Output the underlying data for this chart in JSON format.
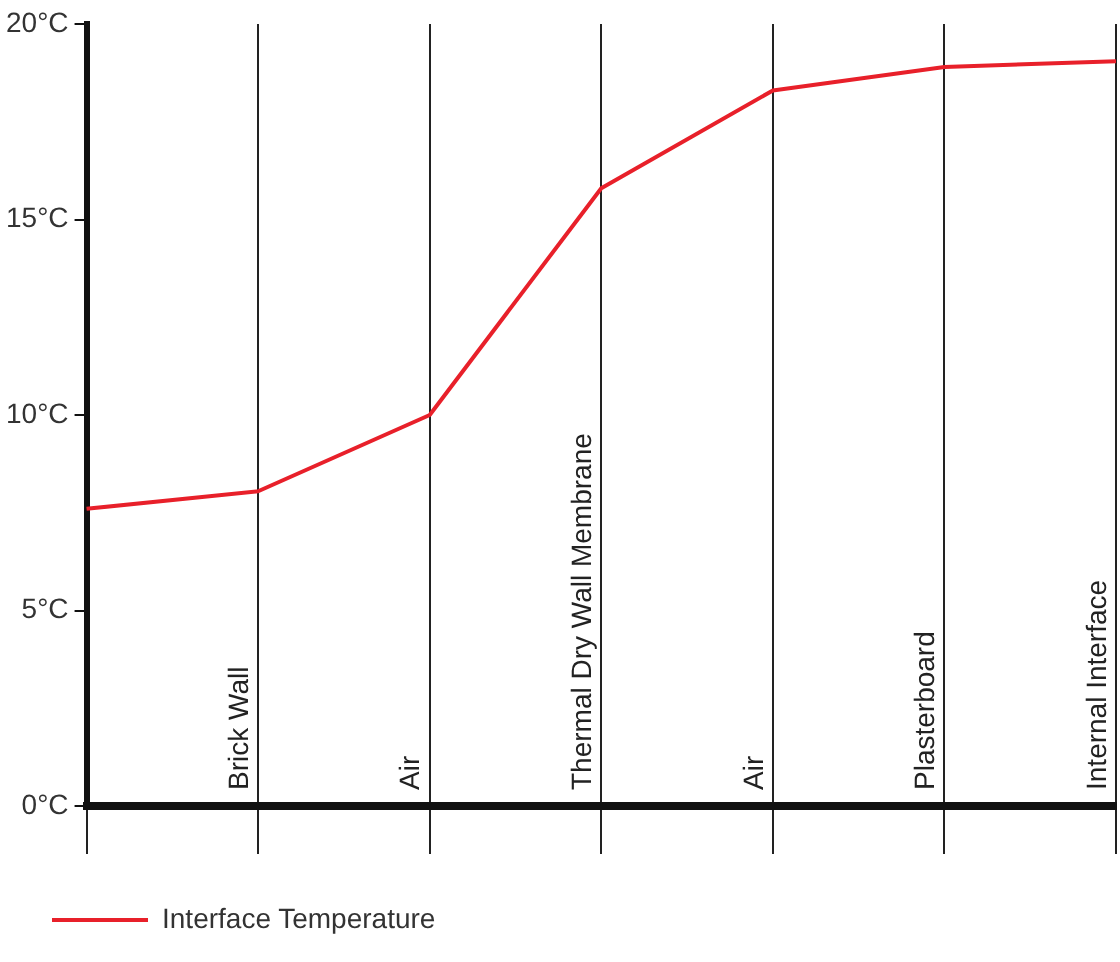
{
  "chart_data": {
    "type": "line",
    "categories": [
      null,
      "Brick Wall",
      "Air",
      "Thermal Dry Wall Membrane",
      "Air",
      "Plasterboard",
      "Internal Interface"
    ],
    "series": [
      {
        "name": "Interface Temperature",
        "color": "#e8202a",
        "values": [
          7.6,
          8.05,
          10,
          15.8,
          18.3,
          18.9,
          19.05
        ]
      }
    ],
    "ylim": [
      0,
      20
    ],
    "yticks": [
      {
        "value": 0,
        "label": "0°C"
      },
      {
        "value": 5,
        "label": "5°C"
      },
      {
        "value": 10,
        "label": "10°C"
      },
      {
        "value": 15,
        "label": "15°C"
      },
      {
        "value": 20,
        "label": "20°C"
      }
    ],
    "grid": "x",
    "legend": "bottom left",
    "marker": "none",
    "line_style": "solid"
  }
}
